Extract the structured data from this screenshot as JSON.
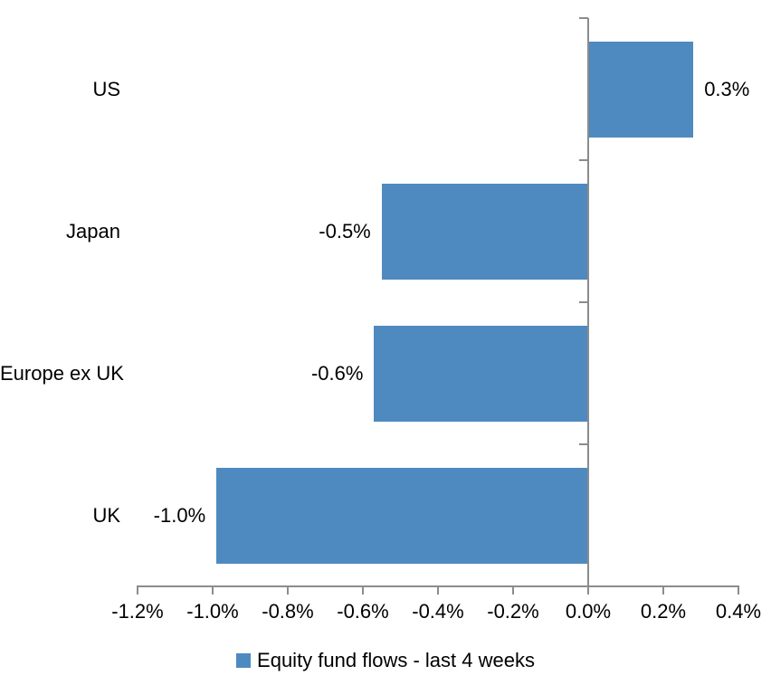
{
  "chart_data": {
    "type": "bar",
    "orientation": "horizontal",
    "title": "",
    "categories": [
      "US",
      "Japan",
      "Europe ex UK",
      "UK"
    ],
    "values": [
      0.3,
      -0.5,
      -0.6,
      -1.0
    ],
    "plot_values": [
      0.28,
      -0.55,
      -0.57,
      -0.99
    ],
    "data_labels": [
      "0.3%",
      "-0.5%",
      "-0.6%",
      "-1.0%"
    ],
    "series": [
      {
        "name": "Equity fund flows - last 4 weeks",
        "values": [
          0.3,
          -0.5,
          -0.6,
          -1.0
        ]
      }
    ],
    "series_name": "Equity fund flows - last 4 weeks",
    "x_axis": {
      "min": -1.2,
      "max": 0.4,
      "step": 0.2,
      "tick_labels": [
        "-1.2%",
        "-1.0%",
        "-0.8%",
        "-0.6%",
        "-0.4%",
        "-0.2%",
        "0.0%",
        "0.2%",
        "0.4%"
      ],
      "unit": "%"
    },
    "grid": false,
    "legend_position": "bottom",
    "colors": {
      "bar": "#4E8AC0",
      "axis": "#8C8C8C",
      "text": "#000000",
      "background": "#FFFFFF"
    }
  },
  "legend": {
    "items": [
      {
        "label": "Equity fund flows - last 4 weeks",
        "swatch_color": "#4E8AC0"
      }
    ]
  }
}
